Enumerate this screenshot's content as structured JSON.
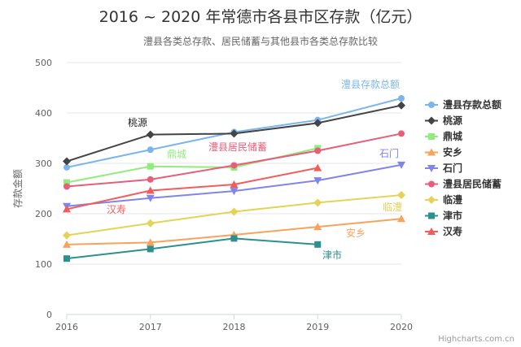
{
  "chart_data": {
    "type": "line",
    "title": "2016 ~ 2020 年常德市各县市区存款（亿元）",
    "subtitle": "澧县各类总存款、居民储蓄与其他县市各类总存款比较",
    "xlabel": "",
    "ylabel": "存款金额",
    "x": [
      "2016",
      "2017",
      "2018",
      "2019",
      "2020"
    ],
    "ylim": [
      0,
      500
    ],
    "yticks": [
      0,
      100,
      200,
      300,
      400,
      500
    ],
    "series": [
      {
        "name": "澧县存款总额",
        "color": "#7cb5ec",
        "marker": "circle",
        "values": [
          292,
          327,
          362,
          386,
          429
        ]
      },
      {
        "name": "桃源",
        "color": "#434348",
        "marker": "diamond",
        "values": [
          304,
          357,
          359,
          380,
          415
        ]
      },
      {
        "name": "鼎城",
        "color": "#90ed7d",
        "marker": "square",
        "values": [
          262,
          294,
          292,
          330,
          null
        ]
      },
      {
        "name": "安乡",
        "color": "#f7a35c",
        "marker": "triangle",
        "values": [
          139,
          143,
          158,
          174,
          190
        ]
      },
      {
        "name": "石门",
        "color": "#8085e9",
        "marker": "triangle-down",
        "values": [
          215,
          231,
          245,
          266,
          297
        ]
      },
      {
        "name": "澧县居民储蓄",
        "color": "#e75e7a",
        "marker": "circle",
        "values": [
          254,
          268,
          296,
          325,
          359
        ]
      },
      {
        "name": "临澧",
        "color": "#e4d354",
        "marker": "diamond",
        "values": [
          157,
          181,
          204,
          222,
          237
        ]
      },
      {
        "name": "津市",
        "color": "#2b908f",
        "marker": "square",
        "values": [
          111,
          130,
          151,
          139,
          null
        ]
      },
      {
        "name": "汉寿",
        "color": "#f45b5b",
        "marker": "triangle",
        "values": [
          209,
          246,
          258,
          291,
          null
        ]
      }
    ],
    "annotations": [
      {
        "text": "澧县存款总额",
        "series": "澧县存款总额"
      },
      {
        "text": "桃源",
        "series": "桃源"
      },
      {
        "text": "鼎城",
        "series": "鼎城"
      },
      {
        "text": "澧县居民储蓄",
        "series": "澧县居民储蓄"
      },
      {
        "text": "石门",
        "series": "石门"
      },
      {
        "text": "汉寿",
        "series": "汉寿"
      },
      {
        "text": "临澧",
        "series": "临澧"
      },
      {
        "text": "安乡",
        "series": "安乡"
      },
      {
        "text": "津市",
        "series": "津市"
      }
    ],
    "legend": "right",
    "credits": "Highcharts.com.cn"
  }
}
